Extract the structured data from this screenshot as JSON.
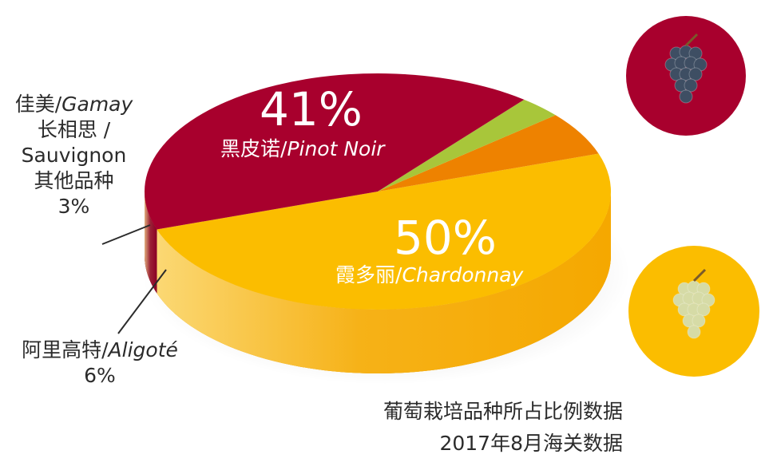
{
  "chart_data": {
    "type": "pie",
    "slices": [
      {
        "key": "chardonnay",
        "pct_label": "50%",
        "name_zh": "霞多丽/",
        "name_en": "Chardonnay",
        "value": 50,
        "color": "#FBBD00",
        "side_color": "#F5A800"
      },
      {
        "key": "aligote",
        "pct_label": "6%",
        "name_zh": "阿里高特/",
        "name_en": "Aligoté",
        "value": 6,
        "color": "#EE8200",
        "side_color": "#F08A00"
      },
      {
        "key": "gamay_sauvignon_other",
        "pct_label": "3%",
        "name_zh": "佳美/",
        "name_en": "Gamay",
        "name_line2": "长相思 /",
        "name_line3": "Sauvignon",
        "name_line4": "其他品种",
        "value": 3,
        "color": "#A8C63A",
        "side_color": "#98BA2E"
      },
      {
        "key": "pinot_noir",
        "pct_label": "41%",
        "name_zh": "黑皮诺/",
        "name_en": "Pinot Noir",
        "value": 41,
        "color": "#A8002D",
        "side_color": "#8A0025"
      }
    ],
    "source_line1": "葡萄栽培品种所占比例数据",
    "source_line2": "2017年8月海关数据"
  },
  "images": [
    {
      "key": "red-grape",
      "bg": "#A8002D",
      "berry": "#3E4E63"
    },
    {
      "key": "white-grape",
      "bg": "#FBBD00",
      "berry": "#D6DBA6"
    }
  ]
}
